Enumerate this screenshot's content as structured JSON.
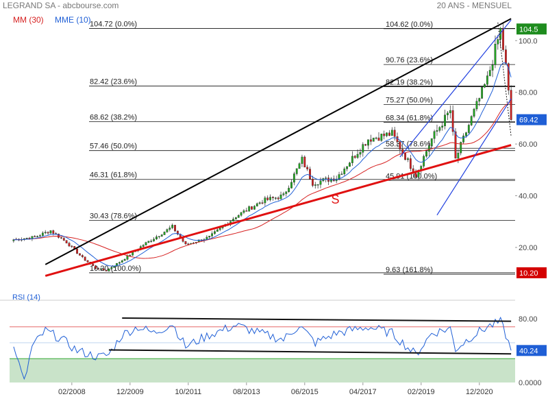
{
  "header": {
    "title": "LEGRAND SA - abcbourse.com",
    "period": "20 ANS - MENSUEL",
    "legend": [
      {
        "label": "MM (30)",
        "color": "#d62020"
      },
      {
        "label": "MME (10)",
        "color": "#1f5fd6"
      }
    ]
  },
  "colors": {
    "candle_up": "#22a822",
    "candle_down": "#d62020",
    "mm30": "#d62020",
    "mme10": "#1f5fd6",
    "trend": "#000000",
    "support": "#e01010",
    "channel": "#1f3fe0",
    "rsi": "#1f5fd6",
    "rsi_high": "#e05050",
    "rsi_low": "#20a020",
    "rsi_fill": "#c9e3c9",
    "badge_green": "#1e8c1e",
    "badge_red": "#d40000",
    "badge_blue": "#1f5fd6"
  },
  "chart_data": [
    {
      "type": "candlestick",
      "ylim": [
        7,
        112
      ],
      "y_ticks": [
        "20.00",
        "40.00",
        "60.00",
        "80.00",
        "100.0"
      ],
      "x_ticks": [
        "02/2008",
        "12/2009",
        "10/2011",
        "08/2013",
        "06/2015",
        "04/2017",
        "02/2019",
        "12/2020"
      ],
      "x_range": [
        "2006-04",
        "2021-12"
      ],
      "badges": [
        {
          "label": "104.5",
          "value": 104.5,
          "color": "green"
        },
        {
          "label": "69.42",
          "value": 69.42,
          "color": "blue"
        },
        {
          "label": "10.20",
          "value": 10.2,
          "color": "red"
        }
      ],
      "series": [
        {
          "name": "MM (30)"
        },
        {
          "name": "MME (10)"
        }
      ],
      "fib_left": [
        {
          "label": "104.72  (0.0%)",
          "value": 104.72
        },
        {
          "label": "82.42  (23.6%)",
          "value": 82.42
        },
        {
          "label": "68.62  (38.2%)",
          "value": 68.62
        },
        {
          "label": "57.46  (50.0%)",
          "value": 57.46
        },
        {
          "label": "46.31  (61.8%)",
          "value": 46.31
        },
        {
          "label": "30.43  (78.6%)",
          "value": 30.43
        },
        {
          "label": "10.20  (100.0%)",
          "value": 10.2
        }
      ],
      "fib_right": [
        {
          "label": "104.62  (0.0%)",
          "value": 104.62
        },
        {
          "label": "90.76  (23.6%)",
          "value": 90.76
        },
        {
          "label": "82.19  (38.2%)",
          "value": 82.19
        },
        {
          "label": "75.27  (50.0%)",
          "value": 75.27
        },
        {
          "label": "68.34  (61.8%)",
          "value": 68.34
        },
        {
          "label": "58.37  (78.6%)",
          "value": 58.37
        },
        {
          "label": "45.91  (100.0%)",
          "value": 45.91
        },
        {
          "label": "9.63  (161.8%)",
          "value": 9.63
        }
      ],
      "support_label": "S",
      "trendlines": [
        {
          "name": "upper-trendline",
          "from": [
            "2007-04",
            13.4
          ],
          "to": [
            "2021-12",
            108.5
          ],
          "style": "black"
        },
        {
          "name": "support-line",
          "from": [
            "2007-04",
            9.0
          ],
          "to": [
            "2021-12",
            59.6
          ],
          "style": "red"
        },
        {
          "name": "channel-upper",
          "from": [
            "2018-06",
            55.0
          ],
          "to": [
            "2021-12",
            108.0
          ],
          "style": "blue"
        },
        {
          "name": "channel-lower",
          "from": [
            "2019-08",
            32.5
          ],
          "to": [
            "2021-12",
            77.5
          ],
          "style": "blue"
        },
        {
          "name": "last-downtrend",
          "from": [
            "2021-07",
            107.0
          ],
          "to": [
            "2021-12",
            63.0
          ],
          "style": "dotted"
        }
      ],
      "anchors": [
        {
          "date": "2006-04",
          "close": 23
        },
        {
          "date": "2006-12",
          "close": 24
        },
        {
          "date": "2007-06",
          "close": 26.5
        },
        {
          "date": "2007-12",
          "close": 22
        },
        {
          "date": "2008-06",
          "close": 16
        },
        {
          "date": "2008-11",
          "close": 12
        },
        {
          "date": "2009-03",
          "close": 11
        },
        {
          "date": "2009-09",
          "close": 15
        },
        {
          "date": "2010-05",
          "close": 21
        },
        {
          "date": "2011-04",
          "close": 28
        },
        {
          "date": "2011-09",
          "close": 21
        },
        {
          "date": "2012-06",
          "close": 24
        },
        {
          "date": "2013-04",
          "close": 32
        },
        {
          "date": "2014-02",
          "close": 38
        },
        {
          "date": "2014-10",
          "close": 40
        },
        {
          "date": "2015-05",
          "close": 54
        },
        {
          "date": "2015-09",
          "close": 45
        },
        {
          "date": "2016-06",
          "close": 47
        },
        {
          "date": "2017-06",
          "close": 62
        },
        {
          "date": "2018-03",
          "close": 64
        },
        {
          "date": "2018-12",
          "close": 48
        },
        {
          "date": "2019-06",
          "close": 62
        },
        {
          "date": "2020-01",
          "close": 73
        },
        {
          "date": "2020-03",
          "close": 54
        },
        {
          "date": "2020-09",
          "close": 70
        },
        {
          "date": "2021-03",
          "close": 85
        },
        {
          "date": "2021-08",
          "close": 104
        },
        {
          "date": "2021-10",
          "close": 90
        },
        {
          "date": "2021-12",
          "close": 69.42
        }
      ]
    },
    {
      "type": "line",
      "title": "RSI (14)",
      "ylim": [
        0,
        100
      ],
      "y_ticks": [
        "80.00",
        "0.0000"
      ],
      "levels": [
        70,
        50,
        30
      ],
      "last_value_label": "40.24",
      "trendlines": [
        {
          "name": "rsi-resistance",
          "from": [
            "2009-09",
            81
          ],
          "to": [
            "2021-12",
            77
          ]
        },
        {
          "name": "rsi-support",
          "from": [
            "2009-04",
            41
          ],
          "to": [
            "2021-12",
            36
          ]
        }
      ],
      "anchors": [
        {
          "date": "2006-04",
          "value": 45
        },
        {
          "date": "2006-08",
          "value": 0
        },
        {
          "date": "2006-11",
          "value": 45
        },
        {
          "date": "2007-04",
          "value": 65
        },
        {
          "date": "2007-10",
          "value": 55
        },
        {
          "date": "2008-04",
          "value": 40
        },
        {
          "date": "2008-12",
          "value": 32
        },
        {
          "date": "2009-04",
          "value": 35
        },
        {
          "date": "2009-09",
          "value": 60
        },
        {
          "date": "2010-03",
          "value": 70
        },
        {
          "date": "2010-09",
          "value": 62
        },
        {
          "date": "2011-04",
          "value": 74
        },
        {
          "date": "2011-09",
          "value": 45
        },
        {
          "date": "2012-06",
          "value": 60
        },
        {
          "date": "2013-04",
          "value": 72
        },
        {
          "date": "2014-01",
          "value": 62
        },
        {
          "date": "2014-10",
          "value": 54
        },
        {
          "date": "2015-04",
          "value": 72
        },
        {
          "date": "2015-10",
          "value": 50
        },
        {
          "date": "2016-06",
          "value": 62
        },
        {
          "date": "2017-06",
          "value": 70
        },
        {
          "date": "2018-03",
          "value": 62
        },
        {
          "date": "2018-12",
          "value": 35
        },
        {
          "date": "2019-06",
          "value": 62
        },
        {
          "date": "2020-01",
          "value": 68
        },
        {
          "date": "2020-03",
          "value": 42
        },
        {
          "date": "2020-09",
          "value": 58
        },
        {
          "date": "2021-03",
          "value": 70
        },
        {
          "date": "2021-08",
          "value": 76
        },
        {
          "date": "2021-10",
          "value": 60
        },
        {
          "date": "2021-12",
          "value": 40.24
        }
      ]
    }
  ]
}
